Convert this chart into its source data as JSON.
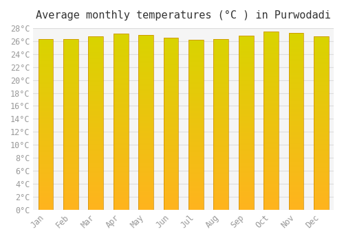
{
  "title": "Average monthly temperatures (°C ) in Purwodadi",
  "months": [
    "Jan",
    "Feb",
    "Mar",
    "Apr",
    "May",
    "Jun",
    "Jul",
    "Aug",
    "Sep",
    "Oct",
    "Nov",
    "Dec"
  ],
  "temperatures": [
    26.3,
    26.3,
    26.7,
    27.1,
    26.9,
    26.5,
    26.2,
    26.3,
    26.8,
    27.5,
    27.3,
    26.7
  ],
  "bar_color_top": "#FFA500",
  "bar_color_bottom": "#FFD700",
  "bar_edge_color": "#CC8800",
  "ylim": [
    0,
    28
  ],
  "ytick_step": 2,
  "background_color": "#FFFFFF",
  "plot_bg_color": "#F5F5F5",
  "grid_color": "#DDDDDD",
  "title_fontsize": 11,
  "tick_fontsize": 8.5,
  "font_family": "monospace"
}
